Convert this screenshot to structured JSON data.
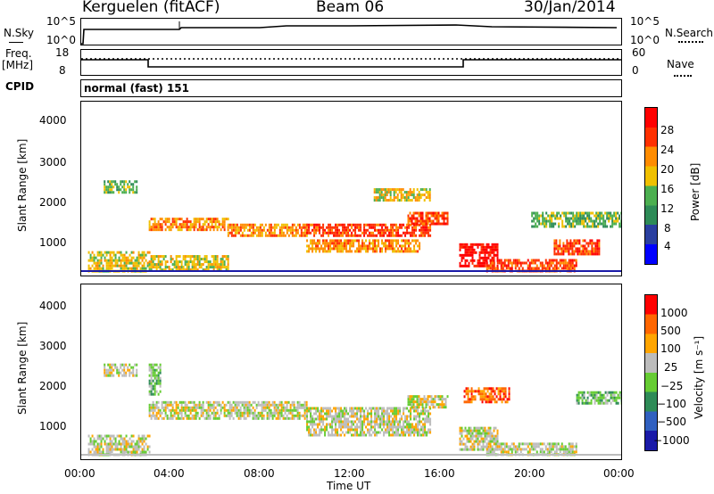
{
  "header": {
    "station": "Kerguelen (fitACF)",
    "beam": "Beam 06",
    "date": "30/Jan/2014"
  },
  "top_panels": {
    "nsky_label": "N.Sky",
    "nsky_ticks": [
      "10^5",
      "10^0"
    ],
    "nsearch_label": "N.Search",
    "nsearch_ticks": [
      "10^5",
      "10^0"
    ],
    "freq_label": "Freq.",
    "freq_unit": "[MHz]",
    "freq_ticks": [
      "18",
      "8"
    ],
    "nave_label": "Nave",
    "nave_ticks": [
      "60",
      "0"
    ],
    "cpid_label": "CPID",
    "cpid_value": "normal (fast) 151"
  },
  "colors": {
    "power": [
      "#0000ff",
      "#2a3fa0",
      "#2e8b57",
      "#4caf50",
      "#f0c000",
      "#ff8c00",
      "#ff3000",
      "#ff0000"
    ],
    "velocity": [
      "#1a1aa8",
      "#3060c0",
      "#2e8b57",
      "#66cc33",
      "#bcbcbc",
      "#ffa500",
      "#ff6600",
      "#ff0000"
    ]
  },
  "chart_data": [
    {
      "type": "heatmap",
      "name": "power",
      "ylabel": "Slant Range [km]",
      "yticks": [
        "4000",
        "3000",
        "2000",
        "1000"
      ],
      "ylim": [
        180,
        4600
      ],
      "colorbar_label": "Power [dB]",
      "colorbar_ticks": [
        "28",
        "24",
        "20",
        "16",
        "12",
        "8",
        "4"
      ],
      "regions": [
        {
          "t0": 0.3,
          "t1": 3.0,
          "r0": 300,
          "r1": 800,
          "level": 4
        },
        {
          "t0": 1.0,
          "t1": 2.5,
          "r0": 2300,
          "r1": 2600,
          "level": 3
        },
        {
          "t0": 3.0,
          "t1": 6.5,
          "r0": 1350,
          "r1": 1650,
          "level": 5
        },
        {
          "t0": 3.0,
          "t1": 6.5,
          "r0": 300,
          "r1": 700,
          "level": 4
        },
        {
          "t0": 6.5,
          "t1": 10.0,
          "r0": 1200,
          "r1": 1500,
          "level": 5
        },
        {
          "t0": 10.0,
          "t1": 15.5,
          "r0": 1200,
          "r1": 1500,
          "level": 6
        },
        {
          "t0": 10.0,
          "t1": 15.0,
          "r0": 800,
          "r1": 1100,
          "level": 5
        },
        {
          "t0": 13.0,
          "t1": 15.5,
          "r0": 2100,
          "r1": 2400,
          "level": 4
        },
        {
          "t0": 14.5,
          "t1": 16.3,
          "r0": 1500,
          "r1": 1800,
          "level": 6
        },
        {
          "t0": 16.8,
          "t1": 18.5,
          "r0": 400,
          "r1": 1000,
          "level": 7
        },
        {
          "t0": 18.0,
          "t1": 22.0,
          "r0": 300,
          "r1": 600,
          "level": 6
        },
        {
          "t0": 21.0,
          "t1": 23.0,
          "r0": 700,
          "r1": 1100,
          "level": 6
        },
        {
          "t0": 20.0,
          "t1": 24.0,
          "r0": 1400,
          "r1": 1800,
          "level": 3
        }
      ]
    },
    {
      "type": "heatmap",
      "name": "velocity",
      "ylabel": "Slant Range [km]",
      "yticks": [
        "4000",
        "3000",
        "2000",
        "1000"
      ],
      "ylim": [
        180,
        4600
      ],
      "colorbar_label": "Velocity [m s⁻¹]",
      "colorbar_ticks": [
        "1000",
        "500",
        "100",
        "25",
        "−25",
        "−100",
        "−500",
        "−1000"
      ],
      "xlabel": "Time UT",
      "xticks": [
        "00:00",
        "04:00",
        "08:00",
        "12:00",
        "16:00",
        "20:00",
        "00:00"
      ],
      "xlim": [
        0,
        24
      ],
      "regions": [
        {
          "t0": 0.3,
          "t1": 3.0,
          "r0": 300,
          "r1": 800,
          "level": 4
        },
        {
          "t0": 1.0,
          "t1": 2.5,
          "r0": 2300,
          "r1": 2600,
          "level": 4
        },
        {
          "t0": 3.0,
          "t1": 10.0,
          "r0": 1200,
          "r1": 1650,
          "level": 4
        },
        {
          "t0": 10.0,
          "t1": 15.5,
          "r0": 800,
          "r1": 1500,
          "level": 4
        },
        {
          "t0": 14.5,
          "t1": 16.3,
          "r0": 1500,
          "r1": 1800,
          "level": 4
        },
        {
          "t0": 16.8,
          "t1": 18.5,
          "r0": 400,
          "r1": 1000,
          "level": 4
        },
        {
          "t0": 17.0,
          "t1": 19.0,
          "r0": 1600,
          "r1": 2000,
          "level": 6
        },
        {
          "t0": 18.0,
          "t1": 22.0,
          "r0": 300,
          "r1": 600,
          "level": 4
        },
        {
          "t0": 22.0,
          "t1": 24.0,
          "r0": 1600,
          "r1": 1900,
          "level": 3
        },
        {
          "t0": 3.0,
          "t1": 3.5,
          "r0": 1800,
          "r1": 2600,
          "level": 3
        }
      ]
    }
  ]
}
